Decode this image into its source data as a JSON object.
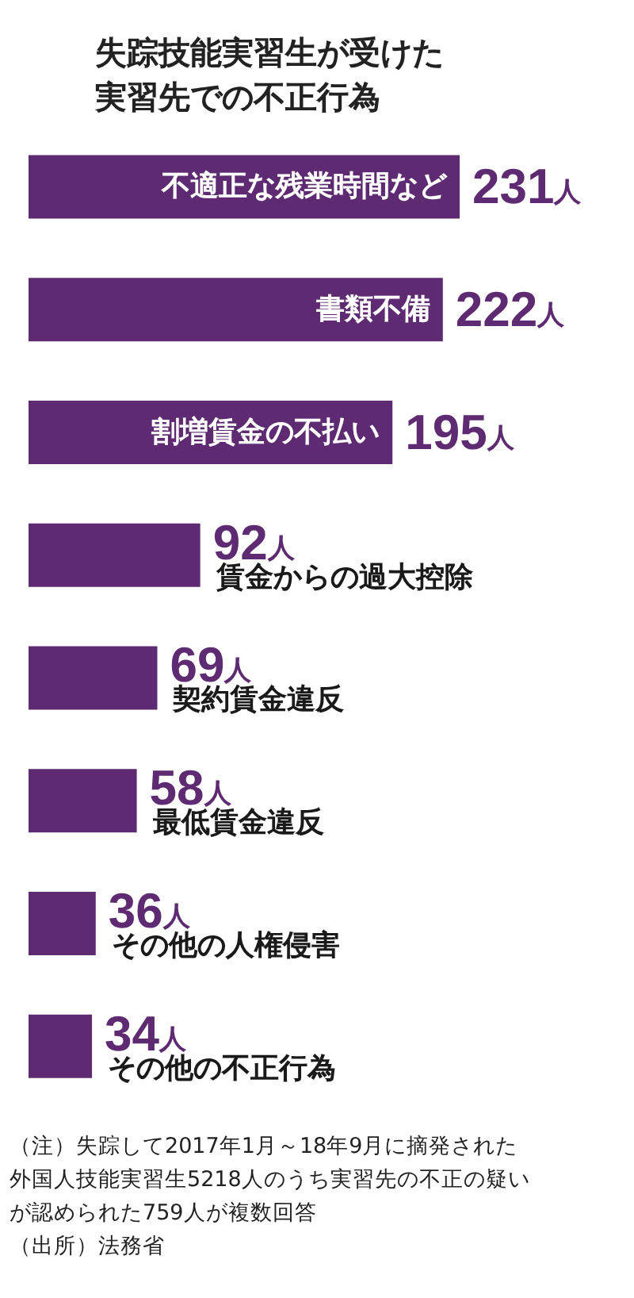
{
  "chart_data": {
    "type": "bar",
    "orientation": "horizontal",
    "title": "失踪技能実習生が受けた実習先での不正行為",
    "categories": [
      "不適正な残業時間など",
      "書類不備",
      "割増賃金の不払い",
      "賃金からの過大控除",
      "契約賃金違反",
      "最低賃金違反",
      "その他の人権侵害",
      "その他の不正行為"
    ],
    "values": [
      231,
      222,
      195,
      92,
      69,
      58,
      36,
      34
    ],
    "value_labels": [
      "231人",
      "222人",
      "195人",
      "92人",
      "69人",
      "58人",
      "36人",
      "34人"
    ],
    "color": "#5e2a72",
    "annotations": [
      "（注）失踪して2017年1月～18年9月に摘発された外国人技能実習生5218人のうち実習先の不正の疑いが認められた759人が複数回答",
      "（出所）法務省"
    ]
  }
}
